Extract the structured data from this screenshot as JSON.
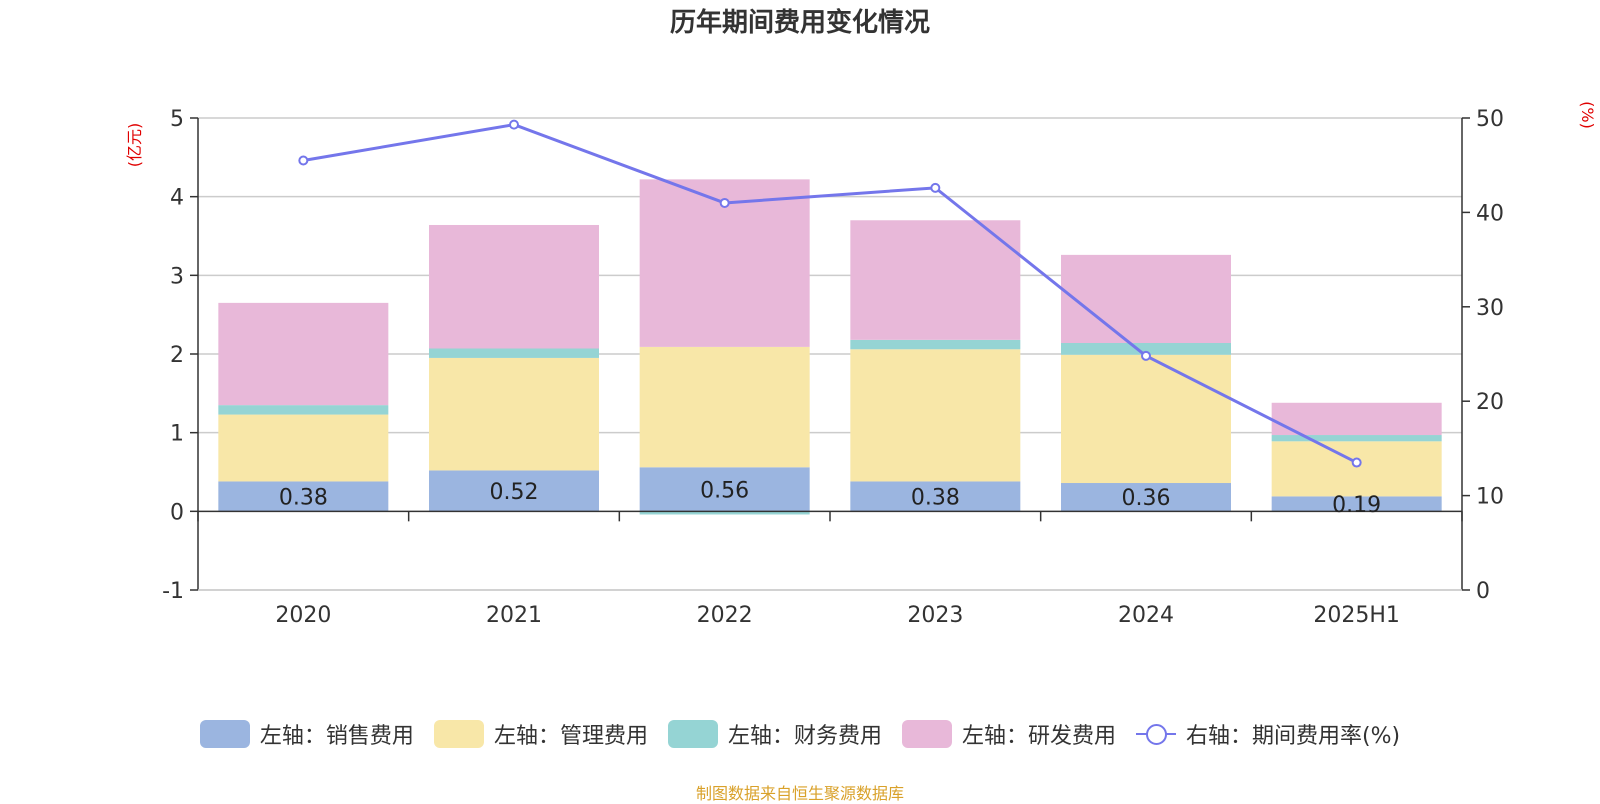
{
  "title": "历年期间费用变化情况",
  "source": "制图数据来自恒生聚源数据库",
  "chart_data": {
    "type": "bar",
    "stacked": true,
    "categories": [
      "2020",
      "2021",
      "2022",
      "2023",
      "2024",
      "2025H1"
    ],
    "y_left": {
      "label": "(亿元)",
      "ylim": [
        -1,
        5
      ],
      "ticks": [
        "-1",
        "0",
        "1",
        "2",
        "3",
        "4",
        "5"
      ]
    },
    "y_right": {
      "label": "(%)",
      "ylim": [
        0,
        50
      ],
      "ticks": [
        "0",
        "10",
        "20",
        "30",
        "40",
        "50"
      ]
    },
    "grid": true,
    "legend_position": "bottom",
    "series": [
      {
        "name": "左轴：销售费用",
        "axis": "left",
        "type": "bar",
        "color": "#9bb5e0",
        "values": [
          0.38,
          0.52,
          0.56,
          0.38,
          0.36,
          0.19
        ],
        "labels": [
          "0.38",
          "0.52",
          "0.56",
          "0.38",
          "0.36",
          "0.19"
        ]
      },
      {
        "name": "左轴：管理费用",
        "axis": "left",
        "type": "bar",
        "color": "#f8e7a8",
        "values": [
          0.85,
          1.43,
          1.53,
          1.68,
          1.63,
          0.7
        ]
      },
      {
        "name": "左轴：财务费用",
        "axis": "left",
        "type": "bar",
        "color": "#95d4d4",
        "values": [
          0.12,
          0.12,
          -0.04,
          0.12,
          0.15,
          0.08
        ]
      },
      {
        "name": "左轴：研发费用",
        "axis": "left",
        "type": "bar",
        "color": "#e8b8d9",
        "values": [
          1.3,
          1.57,
          2.13,
          1.52,
          1.12,
          0.41
        ]
      },
      {
        "name": "右轴：期间费用率(%)",
        "axis": "right",
        "type": "line",
        "color": "#7476eb",
        "values": [
          45.5,
          49.3,
          41.0,
          42.6,
          24.8,
          13.5
        ]
      }
    ]
  }
}
